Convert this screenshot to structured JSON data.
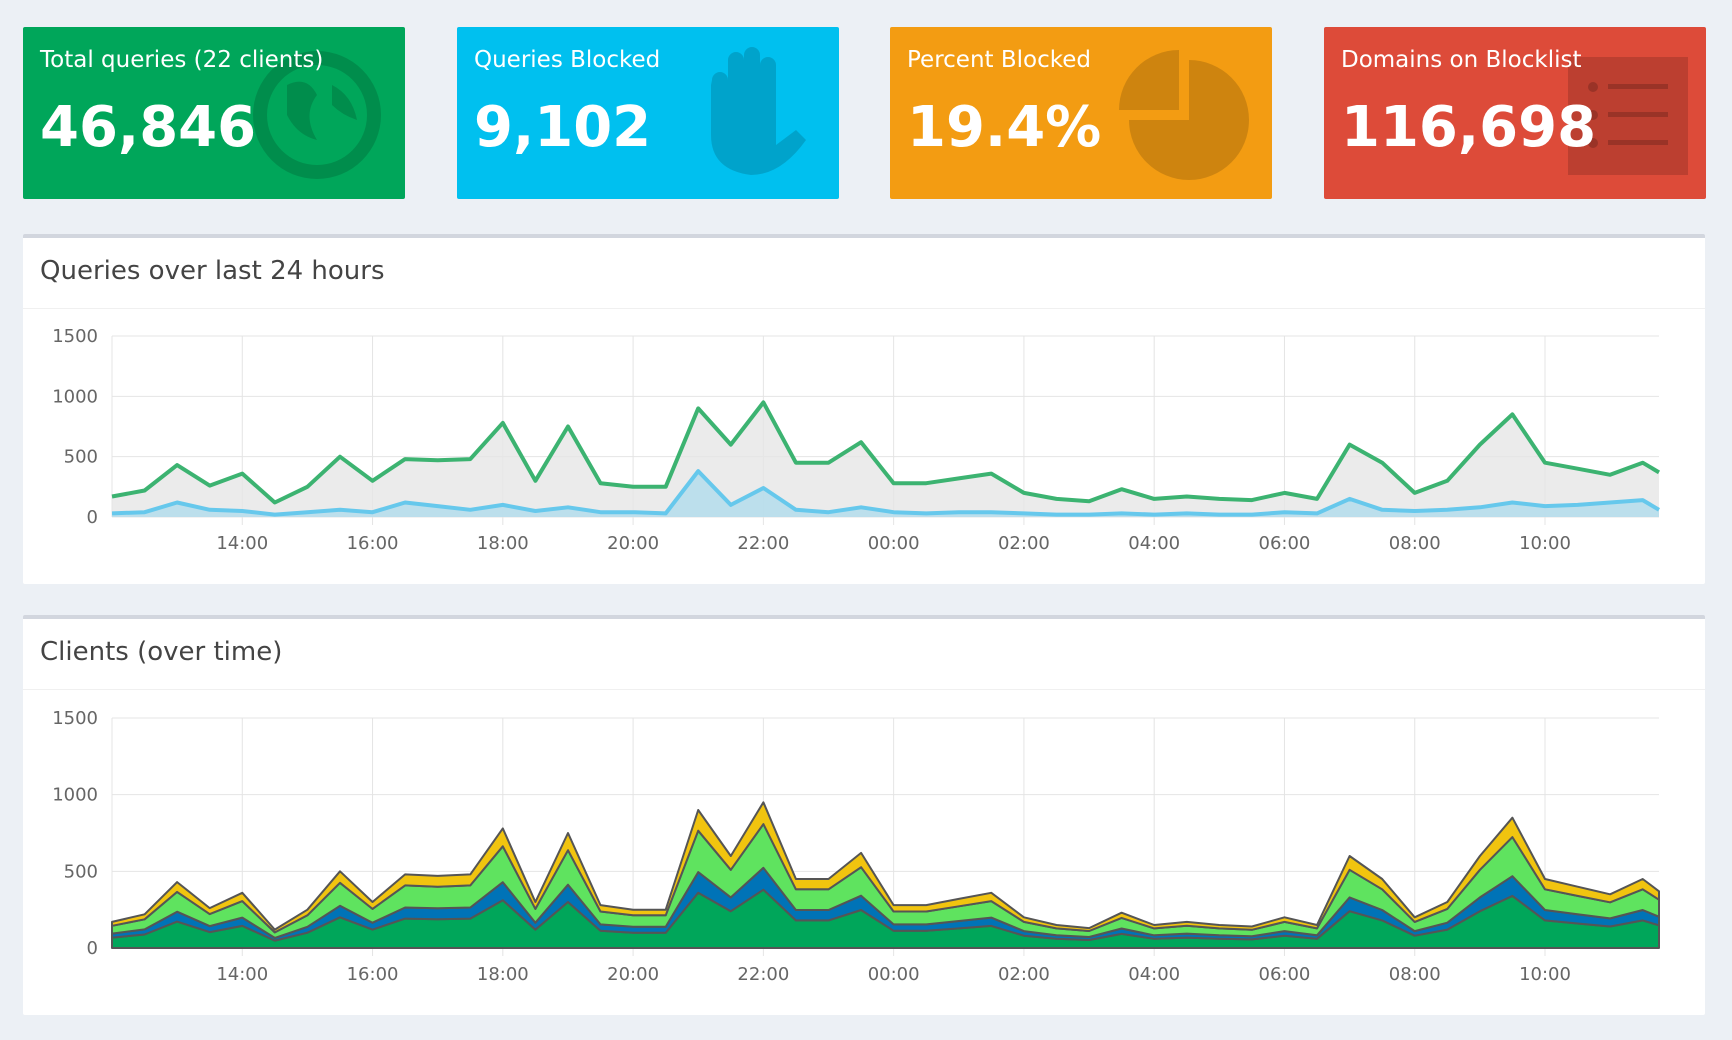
{
  "stats": [
    {
      "label": "Total queries (22 clients)",
      "value": "46,846"
    },
    {
      "label": "Queries Blocked",
      "value": "9,102"
    },
    {
      "label": "Percent Blocked",
      "value": "19.4%"
    },
    {
      "label": "Domains on Blocklist",
      "value": "116,698"
    }
  ],
  "chart_data": [
    {
      "type": "line",
      "title": "Queries over last 24 hours",
      "x": [
        12.0,
        12.5,
        13.0,
        13.5,
        14.0,
        14.5,
        15.0,
        15.5,
        16.0,
        16.5,
        17.0,
        17.5,
        18.0,
        18.5,
        19.0,
        19.5,
        20.0,
        20.5,
        21.0,
        21.5,
        22.0,
        22.5,
        23.0,
        23.5,
        24.0,
        24.5,
        25.0,
        25.5,
        26.0,
        26.5,
        27.0,
        27.5,
        28.0,
        28.5,
        29.0,
        29.5,
        30.0,
        30.5,
        31.0,
        31.5,
        32.0,
        32.5,
        33.0,
        33.5,
        34.0,
        34.5,
        35.0,
        35.5,
        35.75
      ],
      "series": [
        {
          "color": "#3cb371",
          "fill_color": "#e6e6e6",
          "values": [
            170,
            220,
            430,
            260,
            360,
            120,
            250,
            500,
            300,
            480,
            470,
            480,
            780,
            300,
            750,
            280,
            250,
            250,
            900,
            600,
            950,
            450,
            450,
            620,
            280,
            280,
            320,
            360,
            200,
            150,
            130,
            230,
            150,
            170,
            150,
            140,
            200,
            150,
            600,
            450,
            200,
            300,
            600,
            850,
            450,
            400,
            350,
            450,
            370
          ]
        },
        {
          "color": "#66c8ec",
          "fill_color": "#b0dcec",
          "values": [
            30,
            40,
            120,
            60,
            50,
            20,
            40,
            60,
            40,
            120,
            90,
            60,
            100,
            50,
            80,
            40,
            40,
            30,
            380,
            100,
            240,
            60,
            40,
            80,
            40,
            30,
            40,
            40,
            30,
            20,
            20,
            30,
            20,
            30,
            20,
            20,
            40,
            30,
            150,
            60,
            50,
            60,
            80,
            120,
            90,
            100,
            120,
            140,
            60
          ]
        }
      ],
      "xlim": [
        12,
        35.75
      ],
      "ylim": [
        0,
        1500
      ],
      "yticks": [
        0,
        500,
        1000,
        1500
      ],
      "xticks": [
        {
          "value": 14,
          "label": "14:00"
        },
        {
          "value": 16,
          "label": "16:00"
        },
        {
          "value": 18,
          "label": "18:00"
        },
        {
          "value": 20,
          "label": "20:00"
        },
        {
          "value": 22,
          "label": "22:00"
        },
        {
          "value": 24,
          "label": "00:00"
        },
        {
          "value": 26,
          "label": "02:00"
        },
        {
          "value": 28,
          "label": "04:00"
        },
        {
          "value": 30,
          "label": "06:00"
        },
        {
          "value": 32,
          "label": "08:00"
        },
        {
          "value": 34,
          "label": "10:00"
        }
      ],
      "grid": true
    },
    {
      "type": "stacked_area",
      "title": "Clients (over time)",
      "x": [
        12.0,
        12.5,
        13.0,
        13.5,
        14.0,
        14.5,
        15.0,
        15.5,
        16.0,
        16.5,
        17.0,
        17.5,
        18.0,
        18.5,
        19.0,
        19.5,
        20.0,
        20.5,
        21.0,
        21.5,
        22.0,
        22.5,
        23.0,
        23.5,
        24.0,
        24.5,
        25.0,
        25.5,
        26.0,
        26.5,
        27.0,
        27.5,
        28.0,
        28.5,
        29.0,
        29.5,
        30.0,
        30.5,
        31.0,
        31.5,
        32.0,
        32.5,
        33.0,
        33.5,
        34.0,
        34.5,
        35.0,
        35.5,
        35.75
      ],
      "series": [
        {
          "color": "#00a65a",
          "values": [
            68,
            88,
            172,
            104,
            144,
            48,
            100,
            200,
            120,
            192,
            188,
            192,
            312,
            120,
            300,
            112,
            100,
            100,
            360,
            240,
            380,
            180,
            180,
            248,
            112,
            112,
            128,
            144,
            80,
            60,
            52,
            92,
            60,
            68,
            60,
            56,
            80,
            60,
            240,
            180,
            80,
            120,
            240,
            340,
            180,
            160,
            140,
            180,
            148
          ]
        },
        {
          "color": "#0073b7",
          "values": [
            26,
            33,
            65,
            39,
            54,
            18,
            38,
            75,
            45,
            72,
            71,
            72,
            117,
            45,
            113,
            42,
            38,
            38,
            135,
            90,
            143,
            68,
            68,
            93,
            42,
            42,
            48,
            54,
            30,
            23,
            20,
            35,
            23,
            26,
            23,
            21,
            30,
            23,
            90,
            68,
            30,
            45,
            90,
            128,
            68,
            60,
            53,
            68,
            56
          ]
        },
        {
          "color": "#5fe35f",
          "values": [
            51,
            66,
            129,
            78,
            108,
            36,
            75,
            150,
            90,
            144,
            141,
            144,
            234,
            90,
            225,
            84,
            75,
            75,
            270,
            180,
            285,
            135,
            135,
            186,
            84,
            84,
            96,
            108,
            60,
            45,
            39,
            69,
            45,
            51,
            45,
            42,
            60,
            45,
            180,
            135,
            60,
            90,
            180,
            255,
            135,
            120,
            105,
            135,
            111
          ]
        },
        {
          "color": "#f1c40f",
          "values": [
            25,
            33,
            64,
            39,
            54,
            18,
            37,
            75,
            45,
            72,
            70,
            72,
            117,
            45,
            112,
            42,
            37,
            37,
            135,
            90,
            142,
            67,
            67,
            93,
            42,
            42,
            48,
            54,
            30,
            22,
            19,
            34,
            22,
            25,
            22,
            21,
            30,
            22,
            90,
            67,
            30,
            45,
            90,
            127,
            67,
            60,
            52,
            67,
            55
          ]
        }
      ],
      "xlim": [
        12,
        35.75
      ],
      "ylim": [
        0,
        1500
      ],
      "yticks": [
        0,
        500,
        1000,
        1500
      ],
      "xticks": [
        {
          "value": 14,
          "label": "14:00"
        },
        {
          "value": 16,
          "label": "16:00"
        },
        {
          "value": 18,
          "label": "18:00"
        },
        {
          "value": 20,
          "label": "20:00"
        },
        {
          "value": 22,
          "label": "22:00"
        },
        {
          "value": 24,
          "label": "00:00"
        },
        {
          "value": 26,
          "label": "02:00"
        },
        {
          "value": 28,
          "label": "04:00"
        },
        {
          "value": 30,
          "label": "06:00"
        },
        {
          "value": 32,
          "label": "08:00"
        },
        {
          "value": 34,
          "label": "10:00"
        }
      ],
      "grid": true
    }
  ]
}
